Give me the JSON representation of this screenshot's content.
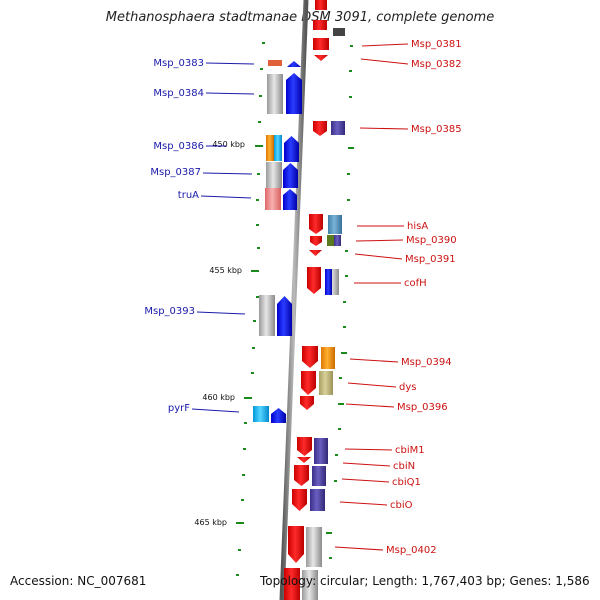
{
  "title": "Methanosphaera stadtmanae DSM 3091, complete genome",
  "footer": {
    "accession": "Accession: NC_007681",
    "info": "Topology: circular; Length: 1,767,403 bp; Genes: 1,586"
  },
  "scale": [
    {
      "text": "450 kbp"
    },
    {
      "text": "455 kbp"
    },
    {
      "text": "460 kbp"
    },
    {
      "text": "465 kbp"
    }
  ],
  "genes_left": [
    {
      "label": "Msp_0383",
      "color": "#1a1aaa"
    },
    {
      "label": "Msp_0384",
      "color": "#1a1aaa"
    },
    {
      "label": "Msp_0386",
      "color": "#1a1aaa"
    },
    {
      "label": "Msp_0387",
      "color": "#1a1aaa"
    },
    {
      "label": "truA",
      "color": "#1a1aaa"
    },
    {
      "label": "Msp_0393",
      "color": "#1a1aaa"
    },
    {
      "label": "pyrF",
      "color": "#1a1aaa"
    }
  ],
  "genes_right": [
    {
      "label": "Msp_0381",
      "color": "#cc1111"
    },
    {
      "label": "Msp_0382",
      "color": "#cc1111"
    },
    {
      "label": "Msp_0385",
      "color": "#cc1111"
    },
    {
      "label": "hisA",
      "color": "#cc1111"
    },
    {
      "label": "Msp_0390",
      "color": "#cc1111"
    },
    {
      "label": "Msp_0391",
      "color": "#cc1111"
    },
    {
      "label": "cofH",
      "color": "#cc1111"
    },
    {
      "label": "Msp_0394",
      "color": "#cc1111"
    },
    {
      "label": "dys",
      "color": "#cc1111"
    },
    {
      "label": "Msp_0396",
      "color": "#cc1111"
    },
    {
      "label": "cbiM1",
      "color": "#cc1111"
    },
    {
      "label": "cbiN",
      "color": "#cc1111"
    },
    {
      "label": "cbiQ1",
      "color": "#cc1111"
    },
    {
      "label": "cbiO",
      "color": "#cc1111"
    },
    {
      "label": "Msp_0402",
      "color": "#cc1111"
    }
  ]
}
